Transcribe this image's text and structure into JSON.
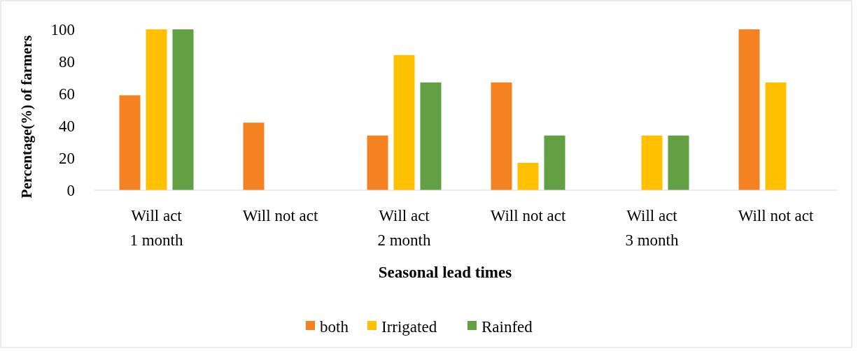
{
  "chart_data": {
    "type": "bar",
    "xlabel": "Seasonal lead times",
    "ylabel": "Percentage(%) of farmers",
    "categories": [
      "Will act\n1 month",
      "Will not act",
      "Will act\n2 month",
      "Will not act",
      "Will act\n3 month",
      "Will not act"
    ],
    "series": [
      {
        "name": "both",
        "color": "#f58220",
        "values": [
          59,
          42,
          34,
          67,
          0,
          100
        ]
      },
      {
        "name": "Irrigated",
        "color": "#ffc000",
        "values": [
          100,
          0,
          84,
          17,
          34,
          67
        ]
      },
      {
        "name": "Rainfed",
        "color": "#62a043",
        "values": [
          100,
          0,
          67,
          34,
          34,
          0
        ]
      }
    ],
    "ylim": [
      0,
      100
    ],
    "yticks": [
      0,
      20,
      40,
      60,
      80,
      100
    ],
    "grid": false,
    "legend": "bottom"
  }
}
